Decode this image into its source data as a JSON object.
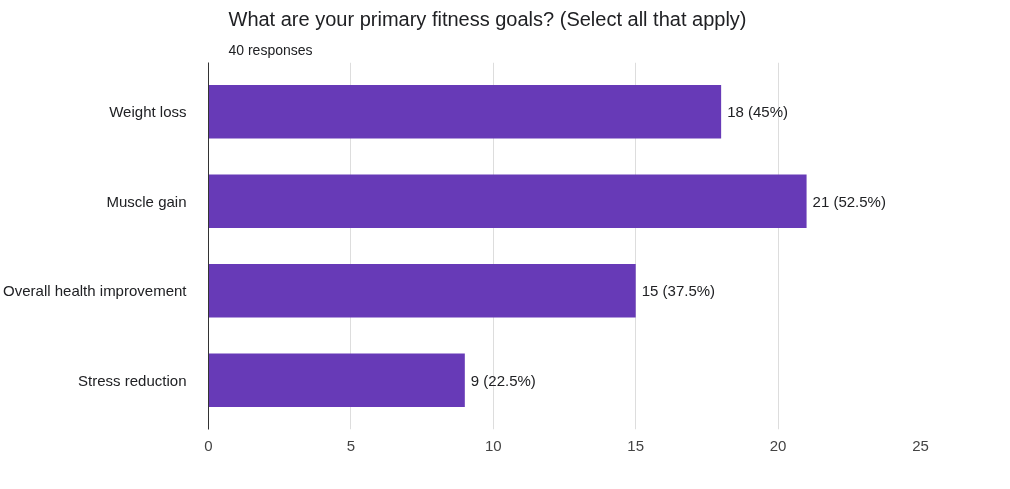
{
  "chart_data": {
    "type": "bar",
    "orientation": "horizontal",
    "title": "What are your primary fitness goals? (Select all that apply)",
    "subtitle": "40 responses",
    "categories": [
      "Weight loss",
      "Muscle gain",
      "Overall health improvement",
      "Stress reduction"
    ],
    "values": [
      18,
      21,
      15,
      9
    ],
    "value_labels": [
      "18 (45%)",
      "21 (52.5%)",
      "15 (37.5%)",
      "9 (22.5%)"
    ],
    "color": "#673ab7",
    "xlim": [
      0,
      25
    ],
    "xticks": [
      0,
      5,
      10,
      15,
      20,
      25
    ],
    "grid": "x"
  }
}
